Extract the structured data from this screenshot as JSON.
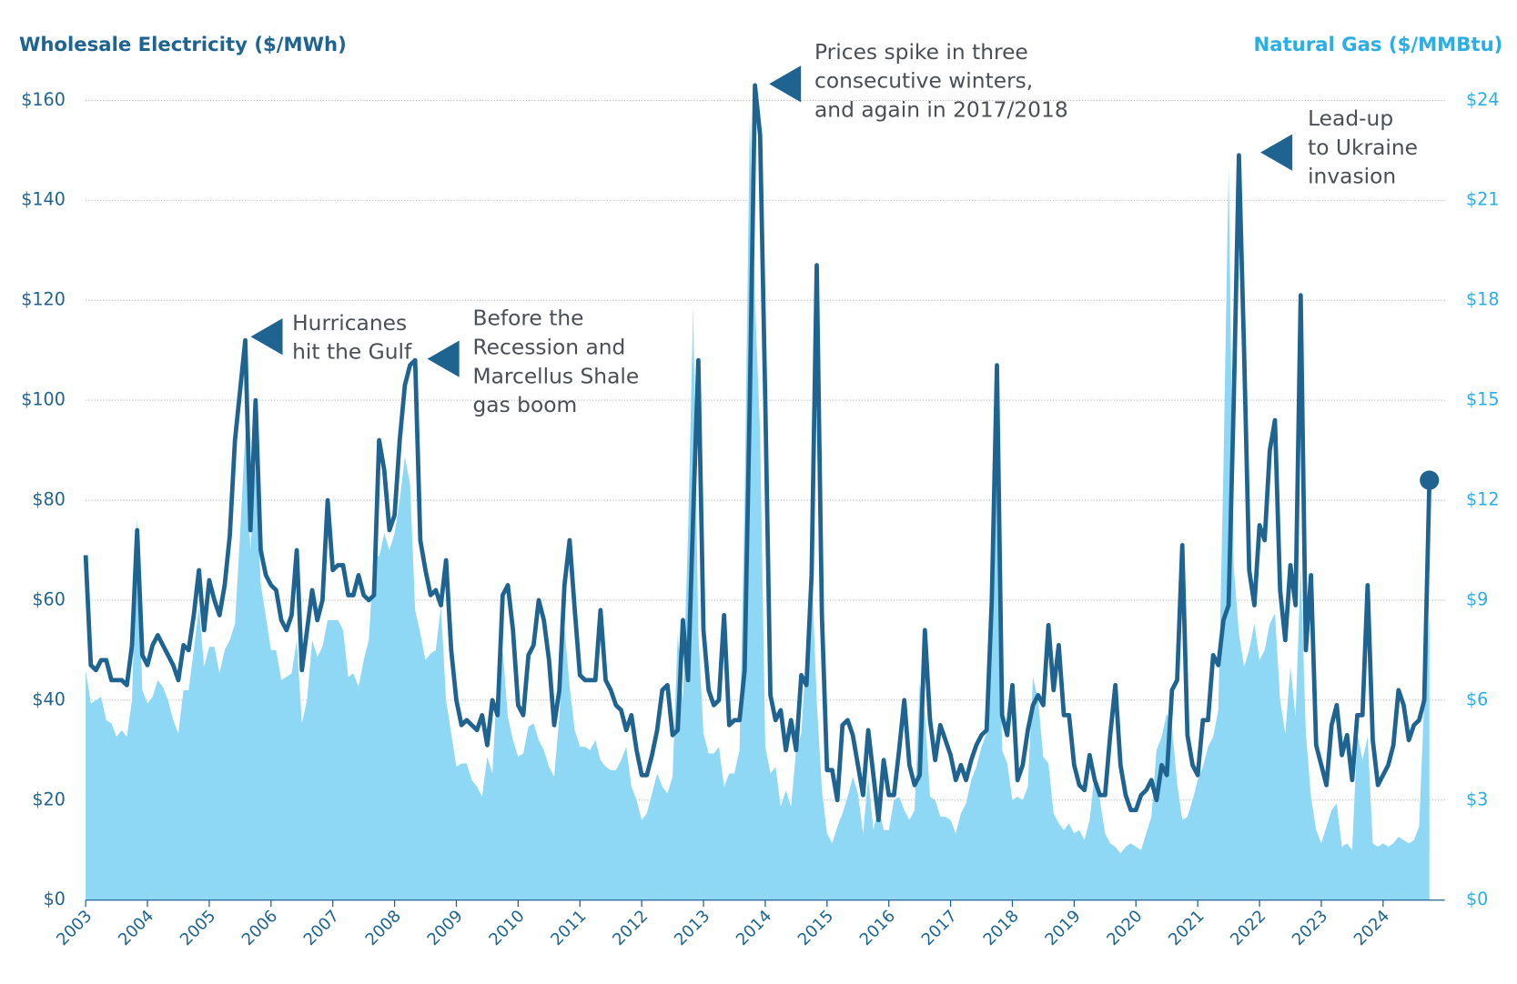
{
  "chart_data": {
    "type": "line",
    "categories": [
      "2003",
      null,
      null,
      null,
      null,
      null,
      null,
      null,
      null,
      null,
      null,
      null,
      "2004",
      null,
      null,
      null,
      null,
      null,
      null,
      null,
      null,
      null,
      null,
      null,
      "2005",
      null,
      null,
      null,
      null,
      null,
      null,
      null,
      null,
      null,
      null,
      null,
      "2006",
      null,
      null,
      null,
      null,
      null,
      null,
      null,
      null,
      null,
      null,
      null,
      "2007",
      null,
      null,
      null,
      null,
      null,
      null,
      null,
      null,
      null,
      null,
      null,
      "2008",
      null,
      null,
      null,
      null,
      null,
      null,
      null,
      null,
      null,
      null,
      null,
      "2009",
      null,
      null,
      null,
      null,
      null,
      null,
      null,
      null,
      null,
      null,
      null,
      "2010",
      null,
      null,
      null,
      null,
      null,
      null,
      null,
      null,
      null,
      null,
      null,
      "2011",
      null,
      null,
      null,
      null,
      null,
      null,
      null,
      null,
      null,
      null,
      null,
      "2012",
      null,
      null,
      null,
      null,
      null,
      null,
      null,
      null,
      null,
      null,
      null,
      "2013",
      null,
      null,
      null,
      null,
      null,
      null,
      null,
      null,
      null,
      null,
      null,
      "2014",
      null,
      null,
      null,
      null,
      null,
      null,
      null,
      null,
      null,
      null,
      null,
      "2015",
      null,
      null,
      null,
      null,
      null,
      null,
      null,
      null,
      null,
      null,
      null,
      "2016",
      null,
      null,
      null,
      null,
      null,
      null,
      null,
      null,
      null,
      null,
      null,
      "2017",
      null,
      null,
      null,
      null,
      null,
      null,
      null,
      null,
      null,
      null,
      null,
      "2018",
      null,
      null,
      null,
      null,
      null,
      null,
      null,
      null,
      null,
      null,
      null,
      "2019",
      null,
      null,
      null,
      null,
      null,
      null,
      null,
      null,
      null,
      null,
      null,
      "2020",
      null,
      null,
      null,
      null,
      null,
      null,
      null,
      null,
      null,
      null,
      null,
      "2021",
      null,
      null,
      null,
      null,
      null,
      null,
      null,
      null,
      null,
      null,
      null,
      "2022",
      null,
      null,
      null,
      null,
      null,
      null,
      null,
      null,
      null,
      null,
      null,
      "2023",
      null,
      null,
      null,
      null,
      null,
      null,
      null,
      null,
      null,
      null,
      null,
      "2024",
      null,
      null,
      null,
      null,
      null,
      null,
      null,
      null,
      null
    ],
    "series": [
      {
        "name": "Wholesale Electricity ($/MWh)",
        "type": "line",
        "axis": "y",
        "color": "#1f6491",
        "values": [
          69,
          47,
          46,
          48,
          48,
          44,
          44,
          44,
          43,
          51,
          74,
          49,
          47,
          51,
          53,
          51,
          49,
          47,
          44,
          51,
          50,
          57,
          66,
          54,
          64,
          60,
          57,
          63,
          73,
          92,
          102,
          112,
          74,
          100,
          70,
          65,
          63,
          62,
          56,
          54,
          57,
          70,
          46,
          54,
          62,
          56,
          60,
          80,
          66,
          67,
          67,
          61,
          61,
          65,
          61,
          60,
          61,
          92,
          86,
          74,
          77,
          92,
          103,
          107,
          108,
          72,
          66,
          61,
          62,
          59,
          68,
          50,
          40,
          35,
          36,
          35,
          34,
          37,
          31,
          40,
          37,
          61,
          63,
          54,
          39,
          37,
          49,
          51,
          60,
          56,
          48,
          35,
          42,
          63,
          72,
          58,
          45,
          44,
          44,
          44,
          58,
          44,
          42,
          39,
          38,
          34,
          37,
          30,
          25,
          25,
          29,
          34,
          42,
          43,
          33,
          34,
          56,
          44,
          77,
          108,
          54,
          42,
          39,
          40,
          57,
          35,
          36,
          36,
          46,
          100,
          163,
          153,
          100,
          41,
          36,
          38,
          30,
          36,
          30,
          45,
          43,
          65,
          127,
          57,
          26,
          26,
          20,
          35,
          36,
          33,
          27,
          21,
          34,
          25,
          16,
          28,
          21,
          21,
          30,
          40,
          27,
          23,
          25,
          54,
          36,
          28,
          35,
          32,
          29,
          24,
          27,
          24,
          28,
          31,
          33,
          34,
          60,
          107,
          37,
          33,
          43,
          24,
          27,
          34,
          39,
          41,
          39,
          55,
          42,
          51,
          37,
          37,
          27,
          23,
          22,
          29,
          24,
          21,
          21,
          33,
          43,
          27,
          21,
          18,
          18,
          21,
          22,
          24,
          20,
          27,
          25,
          42,
          44,
          71,
          33,
          27,
          25,
          36,
          36,
          49,
          47,
          56,
          59,
          100,
          149,
          110,
          66,
          59,
          75,
          72,
          90,
          96,
          62,
          52,
          67,
          59,
          121,
          50,
          65,
          31,
          27,
          23,
          35,
          39,
          29,
          33,
          24,
          37,
          37,
          63,
          32,
          23,
          25,
          27,
          31,
          42,
          39,
          32,
          35,
          36,
          40,
          84
        ]
      },
      {
        "name": "Natural Gas ($/MMBtu)",
        "type": "area",
        "axis": "y2",
        "color": "#8ed8f5",
        "values": [
          6.9,
          5.9,
          6.0,
          6.1,
          5.4,
          5.3,
          4.9,
          5.1,
          4.9,
          6.0,
          11.5,
          6.3,
          5.9,
          6.1,
          6.6,
          6.4,
          6.0,
          5.4,
          5.0,
          6.3,
          6.3,
          7.5,
          8.8,
          7.0,
          7.6,
          7.6,
          6.8,
          7.5,
          7.8,
          8.3,
          11,
          14,
          10.5,
          13,
          9.5,
          8.5,
          7.5,
          7.5,
          6.6,
          6.7,
          6.8,
          7.8,
          5.3,
          6.0,
          7.8,
          7.3,
          7.6,
          8.4,
          8.4,
          8.4,
          8.1,
          6.7,
          6.8,
          6.4,
          7.2,
          7.8,
          10.4,
          10.3,
          11,
          10.5,
          11,
          12,
          13.3,
          12.5,
          8.7,
          8,
          7.2,
          7.4,
          7.5,
          8.8,
          6,
          5,
          4.0,
          4.1,
          4.1,
          3.6,
          3.4,
          3.1,
          4.3,
          3.8,
          6.8,
          7.5,
          5.5,
          4.8,
          4.3,
          4.4,
          5.2,
          5.3,
          4.8,
          4.5,
          4.0,
          3.7,
          5.5,
          8.2,
          6.4,
          5.1,
          4.6,
          4.6,
          4.5,
          4.8,
          4.2,
          4.0,
          3.9,
          3.9,
          4.2,
          4.6,
          3.4,
          3.0,
          2.4,
          2.6,
          3.2,
          3.8,
          3.4,
          3.2,
          3.7,
          8.0,
          6.0,
          11,
          17.8,
          8,
          5.0,
          4.4,
          4.4,
          4.6,
          3.4,
          3.8,
          3.8,
          4.5,
          12,
          23.5,
          18,
          14,
          4.6,
          3.8,
          4.0,
          2.8,
          3.3,
          2.8,
          4.5,
          5.0,
          7.5,
          10,
          6,
          3.3,
          2.0,
          1.7,
          2.2,
          2.6,
          3.1,
          3.7,
          3.2,
          2.0,
          3.7,
          2.1,
          2.8,
          2.1,
          2.1,
          3.0,
          3.1,
          2.7,
          2.4,
          2.7,
          6.5,
          5.6,
          3.1,
          3.0,
          2.5,
          2.5,
          2.4,
          2.0,
          2.6,
          2.9,
          3.6,
          4.0,
          4.6,
          5.0,
          9.0,
          15,
          4.5,
          4.1,
          3.0,
          3.1,
          3.0,
          3.4,
          6.7,
          6.0,
          4.3,
          4.1,
          2.6,
          2.3,
          2.1,
          2.3,
          2.0,
          2.1,
          1.8,
          2.4,
          3.8,
          3.0,
          2.0,
          1.7,
          1.6,
          1.4,
          1.6,
          1.7,
          1.6,
          1.5,
          2.0,
          2.5,
          4.5,
          4.9,
          5.6,
          5.2,
          3.5,
          2.4,
          2.5,
          3.0,
          3.6,
          4.0,
          4.6,
          4.9,
          5.7,
          13,
          22,
          10,
          8,
          7,
          7.5,
          8.3,
          7.2,
          7.5,
          8.3,
          8.6,
          6,
          5,
          7,
          5.5,
          10,
          5,
          3.1,
          2.1,
          1.7,
          2.2,
          2.7,
          2.9,
          1.6,
          1.7,
          1.5,
          5,
          4.2,
          4.9,
          1.7,
          1.6,
          1.7,
          1.6,
          1.7,
          1.9,
          1.8,
          1.7,
          1.8,
          2.2,
          6.0,
          8.5
        ]
      }
    ],
    "ylim": [
      0,
      160
    ],
    "yticks": [
      {
        "value": 0,
        "label": "$0"
      },
      {
        "value": 20,
        "label": "$20"
      },
      {
        "value": 40,
        "label": "$40"
      },
      {
        "value": 60,
        "label": "$60"
      },
      {
        "value": 80,
        "label": "$80"
      },
      {
        "value": 100,
        "label": "$100"
      },
      {
        "value": 120,
        "label": "$120"
      },
      {
        "value": 140,
        "label": "$140"
      },
      {
        "value": 160,
        "label": "$160"
      }
    ],
    "y2lim": [
      0,
      24
    ],
    "y2ticks": [
      {
        "value": 0,
        "label": "$0"
      },
      {
        "value": 3,
        "label": "$3"
      },
      {
        "value": 6,
        "label": "$6"
      },
      {
        "value": 9,
        "label": "$9"
      },
      {
        "value": 12,
        "label": "$12"
      },
      {
        "value": 15,
        "label": "$15"
      },
      {
        "value": 18,
        "label": "$18"
      },
      {
        "value": 21,
        "label": "$21"
      },
      {
        "value": 24,
        "label": "$24"
      }
    ],
    "grid": true,
    "annotations": [
      {
        "lines": [
          "Hurricanes",
          "hit the Gulf"
        ]
      },
      {
        "lines": [
          "Before the",
          "Recession and",
          "Marcellus Shale",
          "gas boom"
        ]
      },
      {
        "lines": [
          "Prices spike in three",
          "consecutive winters,",
          "and again in 2017/2018"
        ]
      },
      {
        "lines": [
          "Lead-up",
          "to Ukraine",
          "invasion"
        ]
      }
    ]
  }
}
